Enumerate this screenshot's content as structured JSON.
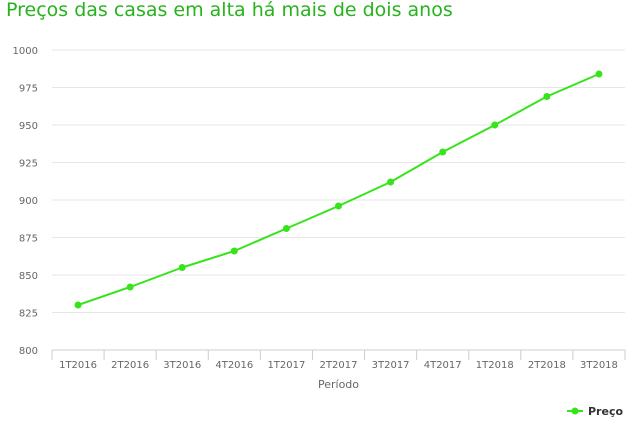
{
  "title": "Preços das casas em alta há mais de dois anos",
  "colors": {
    "title": "#26b31b",
    "series": "#37e31b",
    "grid": "#e6e6e6",
    "axis": "#cccccc",
    "text": "#666666"
  },
  "chart_data": {
    "type": "line",
    "title": "Preços das casas em alta há mais de dois anos",
    "xlabel": "Período",
    "ylabel": "",
    "ylim": [
      800,
      1000
    ],
    "yticks": [
      800,
      825,
      850,
      875,
      900,
      925,
      950,
      975,
      1000
    ],
    "categories": [
      "1T2016",
      "2T2016",
      "3T2016",
      "4T2016",
      "1T2017",
      "2T2017",
      "3T2017",
      "4T2017",
      "1T2018",
      "2T2018",
      "3T2018"
    ],
    "series": [
      {
        "name": "Preço",
        "values": [
          830,
          842,
          855,
          866,
          881,
          896,
          912,
          932,
          950,
          969,
          984
        ]
      }
    ],
    "grid": true,
    "legend": "bottom-right"
  }
}
